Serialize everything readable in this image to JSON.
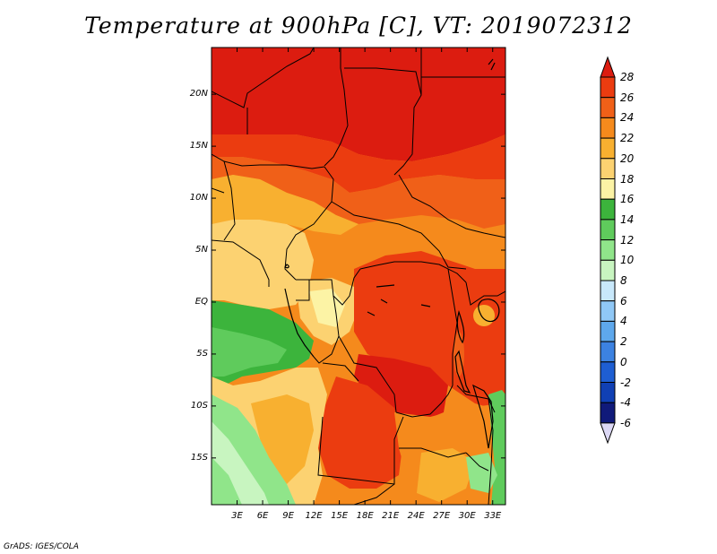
{
  "title": "Temperature at 900hPa [C], VT: 2019072312",
  "credit": "GrADS: IGES/COLA",
  "map": {
    "region": "Central Africa",
    "variable": "Temperature at 900hPa",
    "units": "C",
    "lat_labels": [
      "20N",
      "15N",
      "10N",
      "5N",
      "EQ",
      "5S",
      "10S",
      "15S"
    ],
    "lat_values": [
      20,
      15,
      10,
      5,
      0,
      -5,
      -10,
      -15
    ],
    "lon_labels": [
      "3E",
      "6E",
      "9E",
      "12E",
      "15E",
      "18E",
      "21E",
      "24E",
      "27E",
      "30E",
      "33E"
    ],
    "lon_values": [
      3,
      6,
      9,
      12,
      15,
      18,
      21,
      24,
      27,
      30,
      33
    ],
    "lat_range": [
      -19.5,
      24.5
    ],
    "lon_range": [
      0,
      34.5
    ]
  },
  "colorbar": {
    "labels": [
      "28",
      "26",
      "24",
      "22",
      "20",
      "18",
      "16",
      "14",
      "12",
      "10",
      "8",
      "6",
      "4",
      "2",
      "0",
      "-2",
      "-4",
      "-6"
    ],
    "colors": [
      "#dc1c10",
      "#eb3c10",
      "#f06018",
      "#f58a1c",
      "#f8b030",
      "#fcd271",
      "#fcf3a5",
      "#3cb43c",
      "#5fcb5c",
      "#90e58a",
      "#c8f5c0",
      "#c8e8fb",
      "#90c8f6",
      "#5ea8ec",
      "#3c82e1",
      "#1e5ed2",
      "#1040b4",
      "#101a7a",
      "#dcd8f5"
    ],
    "top_color": "#dc1c10",
    "bottom_color": "#dcd8f5"
  }
}
